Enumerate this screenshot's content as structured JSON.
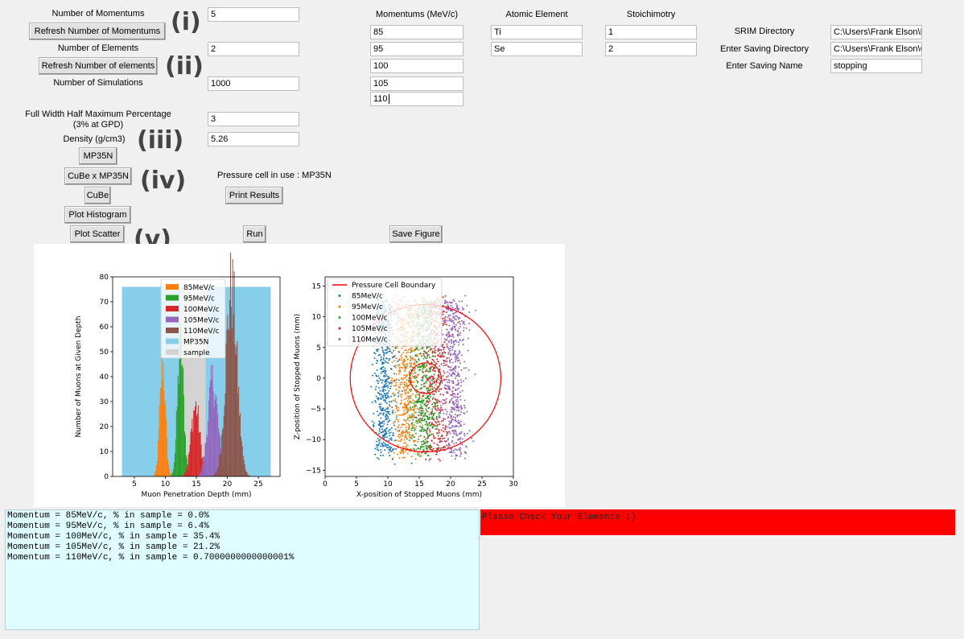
{
  "left_panel": {
    "num_momentums_label": "Number of Momentums",
    "num_momentums_value": "5",
    "refresh_momentums_btn": "Refresh Number of Momentums",
    "num_elements_label": "Number of Elements",
    "num_elements_value": "2",
    "refresh_elements_btn": "Refresh Number of elements",
    "num_simulations_label": "Number of Simulations",
    "num_simulations_value": "1000",
    "fwhm_label_1": "Full Width Half Maximum Percentage",
    "fwhm_label_2": "(3% at GPD)",
    "fwhm_value": "3",
    "density_label": "Density (g/cm3)",
    "density_value": "5.26",
    "mp35n_btn": "MP35N",
    "cube_mp35n_btn": "CuBe x MP35N",
    "cube_btn": "CuBe",
    "plot_histogram_btn": "Plot Histogram",
    "plot_scatter_btn": "Plot Scatter",
    "pressure_cell_text": "Pressure cell in use : MP35N",
    "print_results_btn": "Print Results",
    "run_btn": "Run",
    "save_figure_btn": "Save Figure"
  },
  "annotations": [
    "(i)",
    "(ii)",
    "(iii)",
    "(iv)",
    "(v)"
  ],
  "columns": {
    "momentums_header": "Momentums (MeV/c)",
    "element_header": "Atomic Element",
    "stoich_header": "Stoichimotry",
    "momentums": [
      "85",
      "95",
      "100",
      "105",
      "110"
    ],
    "elements": [
      "Ti",
      "Se"
    ],
    "stoich": [
      "1",
      "2"
    ]
  },
  "right_panel": {
    "srim_label": "SRIM Directory",
    "srim_value": "C:\\Users\\Frank Elson\\D",
    "saving_dir_label": "Enter Saving Directory",
    "saving_dir_value": "C:\\Users\\Frank Elson\\C",
    "saving_name_label": "Enter Saving Name",
    "saving_name_value": "stopping"
  },
  "console_lines": [
    "Momentum = 85MeV/c, % in sample = 0.0%",
    "Momentum = 95MeV/c, % in sample = 6.4%",
    "Momentum = 100MeV/c, % in sample = 35.4%",
    "Momentum = 105MeV/c, % in sample = 21.2%",
    "Momentum = 110MeV/c, % in sample = 0.7000000000000001%"
  ],
  "error_message": "Please Check Your Elements :)",
  "colors": {
    "c85": "#ff7f0e",
    "c95": "#2ca02c",
    "c100": "#d62728",
    "c105": "#9467bd",
    "c110": "#8c564b",
    "mp35n": "#87ceeb",
    "sample": "#d3d3d3",
    "boundary": "#ff0000",
    "scatter85": "#1f77b4"
  },
  "chart_data": [
    {
      "type": "bar",
      "xlabel": "Muon Penetration Depth (mm)",
      "ylabel": "Number of Muons at Given Depth",
      "xlim": [
        1.5,
        28.5
      ],
      "ylim": [
        0,
        80
      ],
      "xticks": [
        5,
        10,
        15,
        20,
        25
      ],
      "yticks": [
        0,
        10,
        20,
        30,
        40,
        50,
        60,
        70,
        80
      ],
      "legend": [
        "85MeV/c",
        "95MeV/c",
        "100MeV/c",
        "105MeV/c",
        "110MeV/c",
        "MP35N",
        "sample"
      ],
      "legend_position": "top-center",
      "regions": [
        {
          "name": "MP35N",
          "x": [
            3,
            27
          ],
          "height": 76
        },
        {
          "name": "sample",
          "x": [
            12.5,
            16.5
          ],
          "height": 76
        }
      ],
      "series": [
        {
          "name": "85MeV/c",
          "center": 9.5,
          "sigma": 0.45,
          "peak": 45
        },
        {
          "name": "95MeV/c",
          "center": 12.4,
          "sigma": 0.5,
          "peak": 52
        },
        {
          "name": "100MeV/c",
          "center": 14.8,
          "sigma": 0.7,
          "peak": 28
        },
        {
          "name": "105MeV/c",
          "center": 17.6,
          "sigma": 0.8,
          "peak": 38
        },
        {
          "name": "110MeV/c",
          "center": 20.6,
          "sigma": 0.9,
          "peak": 75
        }
      ]
    },
    {
      "type": "scatter",
      "xlabel": "X-position of Stopped Muons (mm)",
      "ylabel": "Z-position of Stopped Muons (mm)",
      "xlim": [
        0,
        30
      ],
      "ylim": [
        -16,
        16.5
      ],
      "xticks": [
        0,
        5,
        10,
        15,
        20,
        25,
        30
      ],
      "yticks": [
        -15,
        -10,
        -5,
        0,
        5,
        10,
        15
      ],
      "legend": [
        "Pressure Cell Boundary",
        "85MeV/c",
        "95MeV/c",
        "100MeV/c",
        "105MeV/c",
        "110MeV/c"
      ],
      "legend_position": "top-left",
      "boundaries": [
        {
          "cx": 16,
          "cy": 0,
          "r": 12
        },
        {
          "cx": 16,
          "cy": 0,
          "r": 2.5
        }
      ],
      "series": [
        {
          "name": "85MeV/c",
          "x_center": 9.5,
          "x_spread": 1.2
        },
        {
          "name": "95MeV/c",
          "x_center": 12.8,
          "x_spread": 1.6
        },
        {
          "name": "100MeV/c",
          "x_center": 15.5,
          "x_spread": 1.8
        },
        {
          "name": "105MeV/c",
          "x_center": 17.5,
          "x_spread": 1.8
        },
        {
          "name": "110MeV/c",
          "x_center": 20.5,
          "x_spread": 1.5
        }
      ]
    }
  ]
}
